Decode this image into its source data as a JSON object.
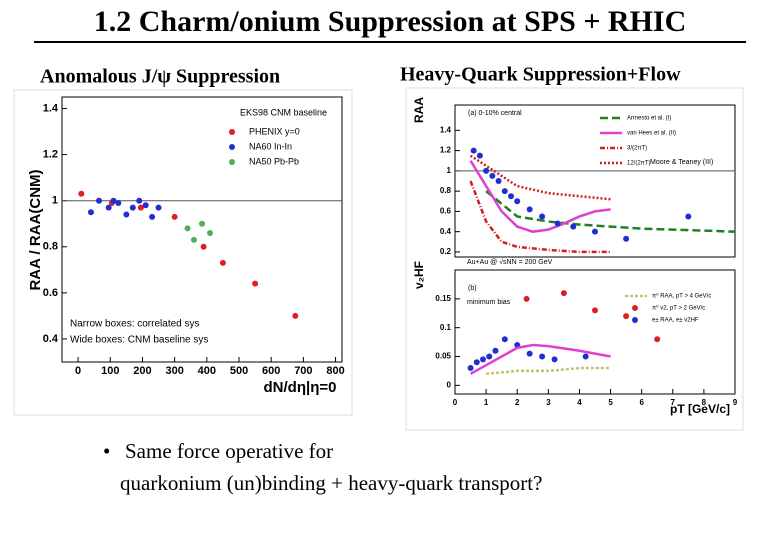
{
  "title": "1.2 Charm/onium Suppression at SPS + RHIC",
  "subtitles": [
    "Anomalous J/ψ Suppression",
    "Heavy-Quark Suppression+Flow"
  ],
  "bullet": [
    "Same force operative for",
    "quarkonium (un)binding + heavy-quark transport?"
  ],
  "chart_data": [
    {
      "type": "scatter",
      "xlabel": "dN/dη|η=0",
      "ylabel": "RAA / RAA(CNM)",
      "xlim": [
        -50,
        820
      ],
      "ylim": [
        0.3,
        1.45
      ],
      "xticks": [
        0,
        100,
        200,
        300,
        400,
        500,
        600,
        700,
        800
      ],
      "yticks": [
        0.4,
        0.6,
        0.8,
        1,
        1.2,
        1.4
      ],
      "hline": 1,
      "legend_title": "EKS98 CNM baseline",
      "annotations": [
        "Narrow boxes: correlated sys",
        "Wide boxes: CNM baseline sys"
      ],
      "series": [
        {
          "name": "PHENIX y=0",
          "color": "#e02020",
          "kind": "scatter",
          "x": [
            10,
            105,
            195,
            300,
            390,
            450,
            550,
            675
          ],
          "values": [
            1.03,
            0.99,
            0.97,
            0.93,
            0.8,
            0.73,
            0.64,
            0.5
          ]
        },
        {
          "name": "NA60 In-In",
          "color": "#2030d0",
          "kind": "scatter",
          "x": [
            40,
            65,
            95,
            110,
            125,
            150,
            170,
            190,
            210,
            230,
            250
          ],
          "values": [
            0.95,
            1.0,
            0.97,
            1.0,
            0.99,
            0.94,
            0.97,
            1.0,
            0.98,
            0.93,
            0.97
          ]
        },
        {
          "name": "NA50 Pb-Pb",
          "color": "#50b050",
          "kind": "scatter",
          "x": [
            340,
            360,
            385,
            410
          ],
          "values": [
            0.88,
            0.83,
            0.9,
            0.86
          ]
        }
      ]
    },
    {
      "type": "scatter",
      "ylabel": "RAA",
      "xlim": [
        0,
        9
      ],
      "ylim": [
        0.15,
        1.65
      ],
      "yticks": [
        0.2,
        0.4,
        0.6,
        0.8,
        1,
        1.2,
        1.4
      ],
      "hline": 1,
      "annotations": [
        "(a) 0-10% central",
        "Au+Au @ √sNN = 200 GeV",
        "Moore & Teaney (III)"
      ],
      "series": [
        {
          "name": "Armesto et al. (I)",
          "color": "#208020",
          "kind": "line",
          "dash": "8 4",
          "x": [
            1,
            2,
            3,
            4,
            5,
            6,
            7,
            8,
            9
          ],
          "values": [
            0.8,
            0.55,
            0.5,
            0.47,
            0.45,
            0.43,
            0.42,
            0.41,
            0.4
          ]
        },
        {
          "name": "van Hees et al. (II)",
          "color": "#e040d0",
          "kind": "line",
          "x": [
            0.5,
            1,
            1.5,
            2,
            2.5,
            3,
            3.5,
            4,
            4.5,
            5
          ],
          "values": [
            1.1,
            0.85,
            0.6,
            0.45,
            0.4,
            0.42,
            0.48,
            0.55,
            0.6,
            0.62
          ]
        },
        {
          "name": "3/(2πT)",
          "color": "#d02020",
          "kind": "line",
          "dash": "5 2 1 2",
          "x": [
            0.5,
            1,
            1.5,
            2,
            3,
            4,
            5
          ],
          "values": [
            0.9,
            0.5,
            0.3,
            0.25,
            0.22,
            0.2,
            0.2
          ]
        },
        {
          "name": "12/(2πT)",
          "color": "#d02020",
          "kind": "line",
          "dash": "2 2",
          "x": [
            0.5,
            1,
            1.5,
            2,
            3,
            4,
            5
          ],
          "values": [
            1.15,
            1.05,
            0.95,
            0.85,
            0.78,
            0.75,
            0.72
          ]
        },
        {
          "color": "#2030d0",
          "kind": "scatter",
          "x": [
            0.6,
            0.8,
            1.0,
            1.2,
            1.4,
            1.6,
            1.8,
            2.0,
            2.4,
            2.8,
            3.3,
            3.8,
            4.5,
            5.5,
            7.5
          ],
          "values": [
            1.2,
            1.15,
            1.0,
            0.95,
            0.9,
            0.8,
            0.75,
            0.7,
            0.62,
            0.55,
            0.48,
            0.45,
            0.4,
            0.33,
            0.55
          ]
        }
      ]
    },
    {
      "type": "scatter",
      "xlabel": "pT [GeV/c]",
      "ylabel": "v₂HF",
      "xlim": [
        0,
        9
      ],
      "ylim": [
        -0.015,
        0.2
      ],
      "xticks": [
        0,
        1,
        2,
        3,
        4,
        5,
        6,
        7,
        8,
        9
      ],
      "yticks": [
        0,
        0.05,
        0.1,
        0.15
      ],
      "annotations": [
        "(b)",
        "minimum bias"
      ],
      "series": [
        {
          "name": "π⁰ RAA, pT > 4 GeV/c",
          "color": "#c8c070",
          "kind": "line",
          "dash": "3 2",
          "x": [
            1,
            2,
            3,
            4,
            5
          ],
          "values": [
            0.02,
            0.025,
            0.025,
            0.03,
            0.03
          ]
        },
        {
          "name": "π⁰ v2, pT > 2 GeV/c",
          "color": "#e02020",
          "kind": "scatter",
          "x": [
            2.3,
            3.5,
            4.5,
            5.5,
            6.5
          ],
          "values": [
            0.15,
            0.16,
            0.13,
            0.12,
            0.08
          ]
        },
        {
          "name": "e± RAA, e± v2HF",
          "color": "#2030d0",
          "kind": "scatter",
          "x": [
            0.5,
            0.7,
            0.9,
            1.1,
            1.3,
            1.6,
            2.0,
            2.4,
            2.8,
            3.2,
            4.2
          ],
          "values": [
            0.03,
            0.04,
            0.045,
            0.05,
            0.06,
            0.08,
            0.07,
            0.055,
            0.05,
            0.045,
            0.05
          ]
        },
        {
          "color": "#e040d0",
          "kind": "line",
          "x": [
            0.5,
            1,
            1.5,
            2,
            2.5,
            3,
            4,
            5
          ],
          "values": [
            0.02,
            0.035,
            0.05,
            0.065,
            0.07,
            0.068,
            0.06,
            0.05
          ]
        }
      ]
    }
  ]
}
